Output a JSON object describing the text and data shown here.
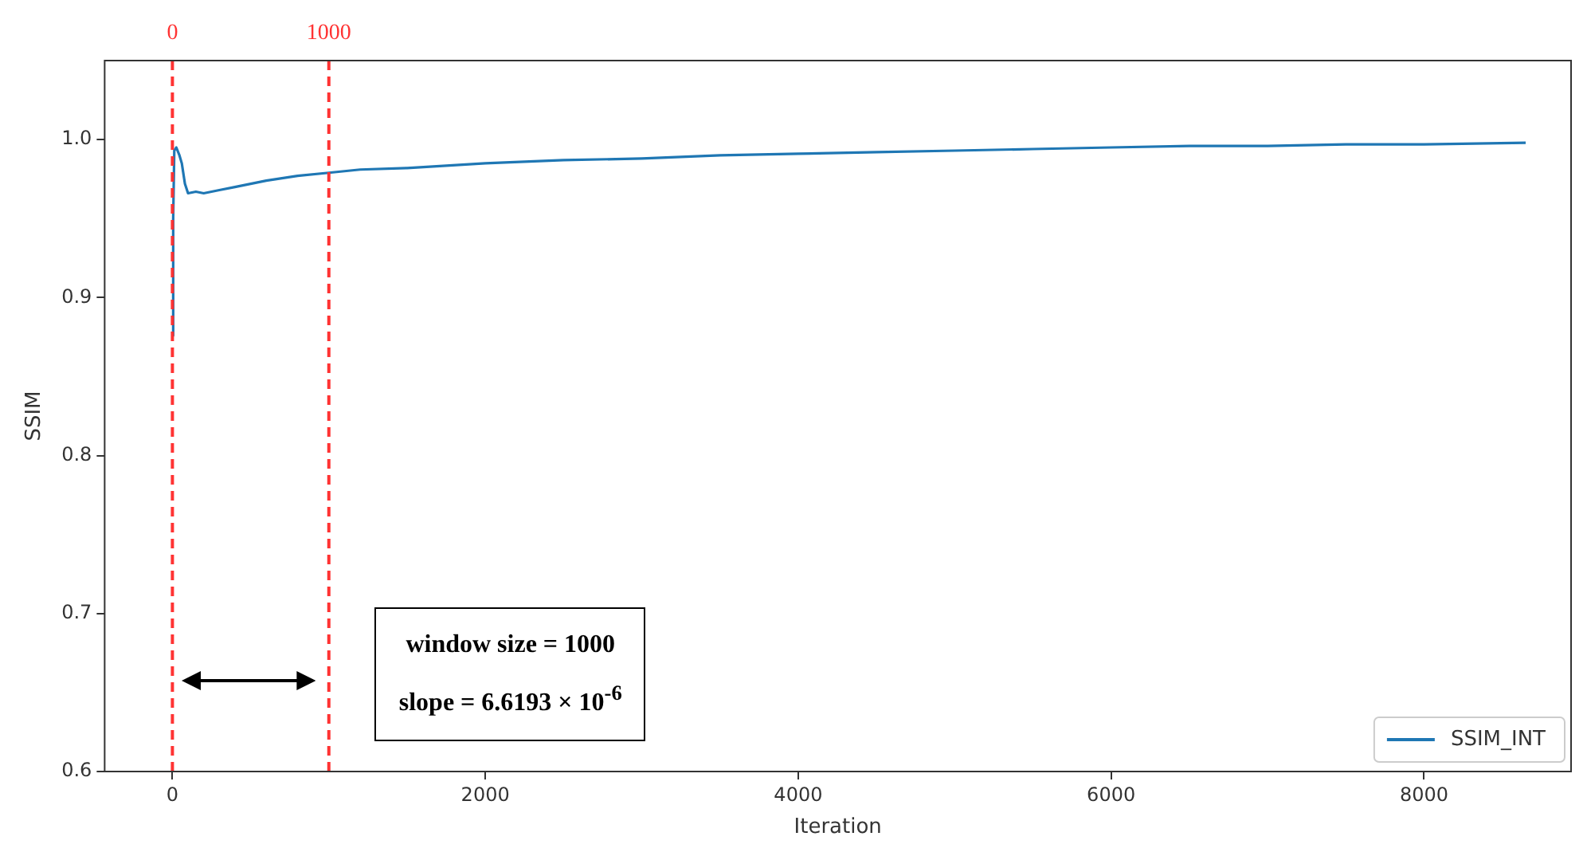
{
  "chart_data": {
    "type": "line",
    "xlabel": "Iteration",
    "ylabel": "SSIM",
    "xlim": [
      -433,
      8940
    ],
    "xticks": [
      0,
      2000,
      4000,
      6000,
      8000
    ],
    "ylim": [
      0.6,
      1.05
    ],
    "yticks": [
      0.6,
      0.7,
      0.8,
      0.9,
      {
        "value": 1,
        "label": "1.0"
      }
    ],
    "series": [
      {
        "name": "SSIM_INT",
        "color": "#1f77b4",
        "x": [
          0,
          5,
          12,
          25,
          45,
          60,
          80,
          100,
          150,
          200,
          300,
          400,
          500,
          600,
          800,
          1000,
          1200,
          1500,
          2000,
          2500,
          3000,
          3500,
          4000,
          4500,
          5000,
          5500,
          6000,
          6500,
          7000,
          7500,
          8000,
          8650
        ],
        "values": [
          0.876,
          0.95,
          0.993,
          0.995,
          0.99,
          0.985,
          0.972,
          0.966,
          0.967,
          0.966,
          0.968,
          0.97,
          0.972,
          0.974,
          0.977,
          0.979,
          0.981,
          0.982,
          0.985,
          0.987,
          0.988,
          0.99,
          0.991,
          0.992,
          0.993,
          0.994,
          0.995,
          0.996,
          0.996,
          0.997,
          0.997,
          0.998
        ]
      }
    ],
    "ref_lines": [
      {
        "axis": "x",
        "value": 0,
        "label": "0",
        "color": "#ff3333",
        "line_style": "dashed"
      },
      {
        "axis": "x",
        "value": 1000,
        "label": "1000",
        "color": "#ff3333",
        "line_style": "dashed"
      }
    ],
    "annotations": [
      "window size = 1000",
      "slope = 6.6193 × 10$^{-6}$"
    ],
    "legend": "bottom right",
    "grid": false,
    "line_style": "solid",
    "marker": "none"
  }
}
